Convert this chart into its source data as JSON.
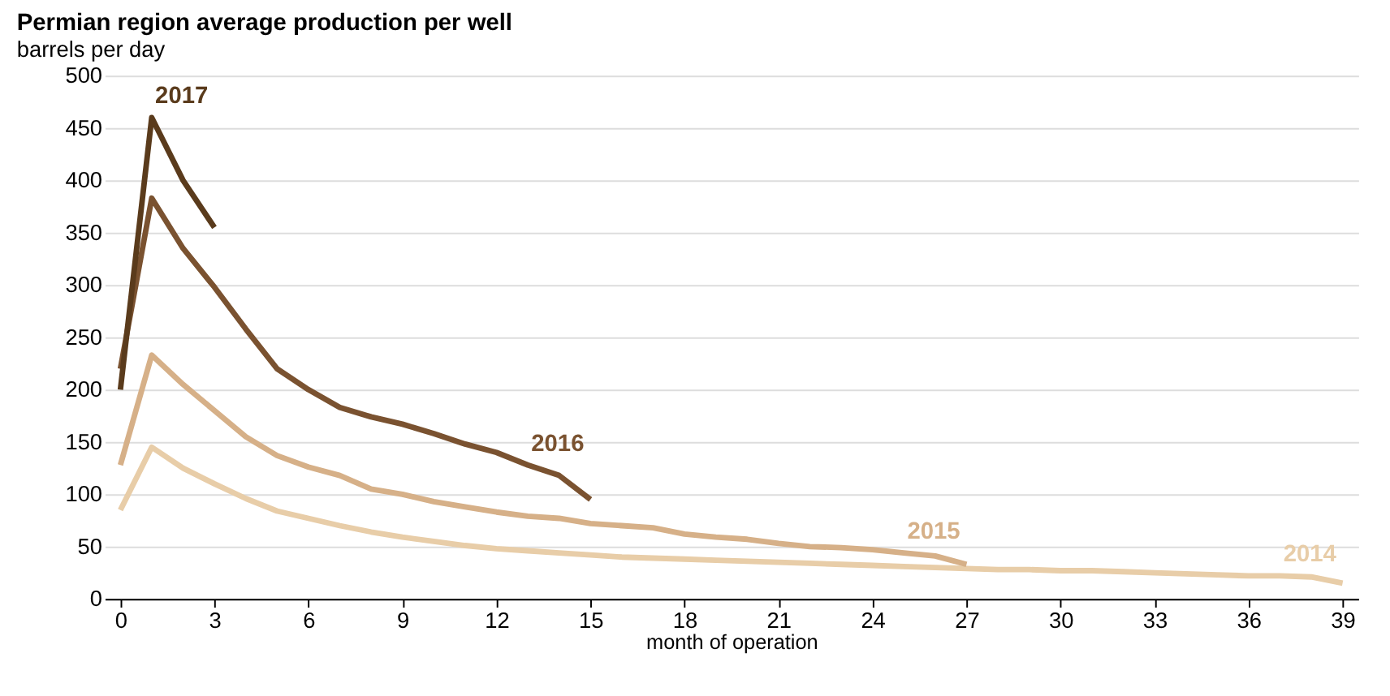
{
  "chart_data": {
    "type": "line",
    "title": "Permian region average production per well",
    "ylabel": "barrels per day",
    "xlabel": "month of operation",
    "xlim": [
      -0.5,
      39.5
    ],
    "xticks": [
      0,
      3,
      6,
      9,
      12,
      15,
      18,
      21,
      24,
      27,
      30,
      33,
      36,
      39
    ],
    "ylim": [
      0,
      500
    ],
    "yticks": [
      0,
      50,
      100,
      150,
      200,
      250,
      300,
      350,
      400,
      450,
      500
    ],
    "grid": "y",
    "legend": false,
    "marker": "none",
    "line_style": "solid",
    "series": [
      {
        "name": "2014",
        "color": "#e8cda8",
        "x": [
          0,
          1,
          2,
          3,
          4,
          5,
          6,
          7,
          8,
          9,
          10,
          11,
          12,
          13,
          14,
          15,
          16,
          17,
          18,
          19,
          20,
          21,
          22,
          23,
          24,
          25,
          26,
          27,
          28,
          29,
          30,
          31,
          32,
          33,
          34,
          35,
          36,
          37,
          38,
          39
        ],
        "values": [
          85,
          145,
          125,
          110,
          96,
          84,
          77,
          70,
          64,
          59,
          55,
          51,
          48,
          46,
          44,
          42,
          40,
          39,
          38,
          37,
          36,
          35,
          34,
          33,
          32,
          31,
          30,
          29,
          28,
          28,
          27,
          27,
          26,
          25,
          24,
          23,
          22,
          22,
          21,
          15
        ]
      },
      {
        "name": "2015",
        "color": "#d6b088",
        "x": [
          0,
          1,
          2,
          3,
          4,
          5,
          6,
          7,
          8,
          9,
          10,
          11,
          12,
          13,
          14,
          15,
          16,
          17,
          18,
          19,
          20,
          21,
          22,
          23,
          24,
          25,
          26,
          27
        ],
        "values": [
          128,
          233,
          205,
          180,
          155,
          137,
          126,
          118,
          105,
          100,
          93,
          88,
          83,
          79,
          77,
          72,
          70,
          68,
          62,
          59,
          57,
          53,
          50,
          49,
          47,
          44,
          41,
          33
        ]
      },
      {
        "name": "2016",
        "color": "#7a5230",
        "x": [
          0,
          1,
          2,
          3,
          4,
          5,
          6,
          7,
          8,
          9,
          10,
          11,
          12,
          13,
          14,
          15
        ],
        "values": [
          220,
          383,
          335,
          298,
          258,
          220,
          200,
          183,
          174,
          167,
          158,
          148,
          140,
          128,
          118,
          95
        ]
      },
      {
        "name": "2017",
        "color": "#5a3b1c",
        "x": [
          0,
          1,
          2,
          3
        ],
        "values": [
          200,
          460,
          400,
          355
        ]
      }
    ]
  }
}
